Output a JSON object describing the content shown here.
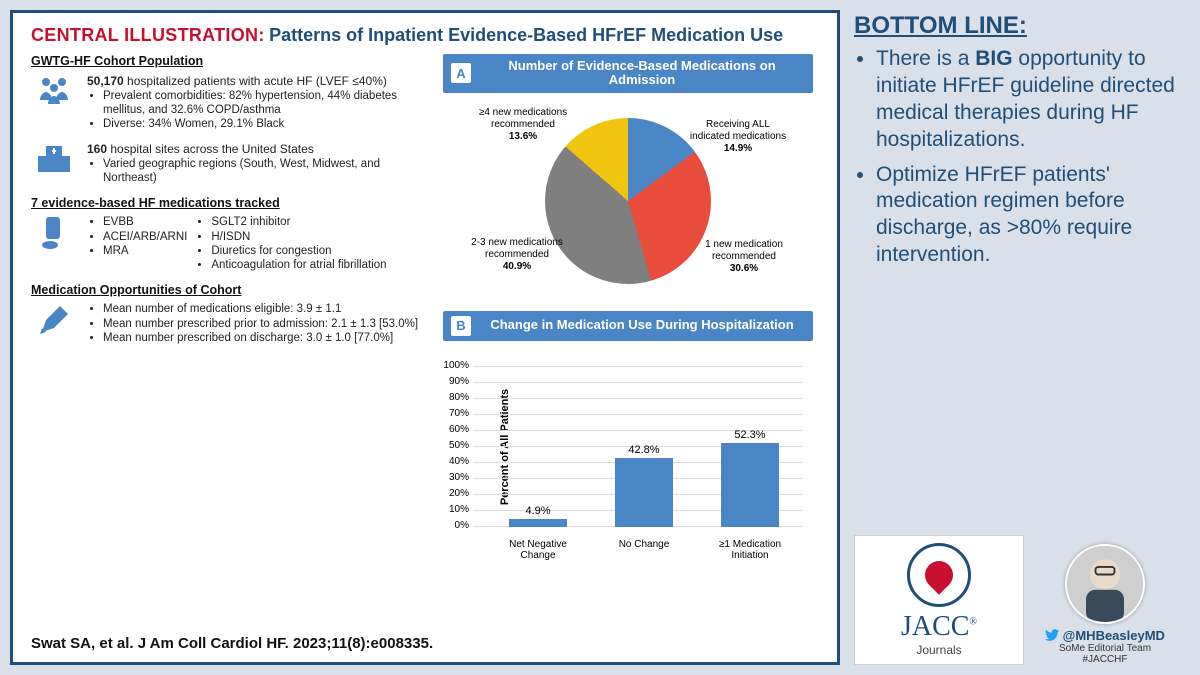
{
  "header": {
    "red_label": "CENTRAL ILLUSTRATION:",
    "title": "Patterns of Inpatient Evidence-Based HFrEF Medication Use"
  },
  "population": {
    "title": "GWTG-HF Cohort Population",
    "lead_count": "50,170",
    "lead_text": "hospitalized patients with acute HF (LVEF ≤40%)",
    "bullets": [
      "Prevalent comorbidities: 82% hypertension, 44% diabetes mellitus, and 32.6% COPD/asthma",
      "Diverse: 34% Women, 29.1% Black"
    ],
    "sites_count": "160",
    "sites_text": "hospital sites across the United States",
    "sites_bullets": [
      "Varied geographic regions (South, West, Midwest, and Northeast)"
    ]
  },
  "medications": {
    "title": "7 evidence-based HF medications tracked",
    "col1": [
      "EVBB",
      "ACEI/ARB/ARNI",
      "MRA"
    ],
    "col2": [
      "SGLT2 inhibitor",
      "H/ISDN",
      "Diuretics for congestion",
      "Anticoagulation for atrial fibrillation"
    ]
  },
  "opportunities": {
    "title": "Medication Opportunities of Cohort",
    "bullets": [
      "Mean number of medications eligible: 3.9 ± 1.1",
      "Mean number prescribed prior to admission: 2.1 ± 1.3 [53.0%]",
      "Mean number prescribed on discharge: 3.0 ± 1.0 [77.0%]"
    ]
  },
  "citation": "Swat SA, et al. J Am Coll Cardiol HF. 2023;11(8):e008335.",
  "panelA": {
    "letter": "A",
    "title": "Number of Evidence-Based Medications on Admission",
    "pie": {
      "slices": [
        {
          "label": "Receiving ALL indicated medications",
          "value": 14.9,
          "display": "14.9%",
          "color": "#4a86c5"
        },
        {
          "label": "1 new medication recommended",
          "value": 30.6,
          "display": "30.6%",
          "color": "#e74c3c"
        },
        {
          "label": "2-3 new medications recommended",
          "value": 40.9,
          "display": "40.9%",
          "color": "#7f7f7f"
        },
        {
          "label": "≥4 new medications recommended",
          "value": 13.6,
          "display": "13.6%",
          "color": "#f1c40f"
        }
      ],
      "border_color": "#ffffff",
      "border_width": 2,
      "label_fontsize": 10
    }
  },
  "panelB": {
    "letter": "B",
    "title": "Change in Medication Use During Hospitalization",
    "bar": {
      "ylabel": "Percent of All Patients",
      "ylim": [
        0,
        100
      ],
      "ytick_step": 10,
      "categories": [
        "Net Negative Change",
        "No Change",
        "≥1 Medication Initiation"
      ],
      "values": [
        4.9,
        42.8,
        52.3
      ],
      "displays": [
        "4.9%",
        "42.8%",
        "52.3%"
      ],
      "bar_color": "#4a86c5",
      "grid_color": "#dddddd",
      "label_fontsize": 10
    }
  },
  "bottomline": {
    "title": "BOTTOM LINE:",
    "items": [
      {
        "pre": "There is a ",
        "bold": "BIG",
        "post": " opportunity to initiate HFrEF guideline directed medical therapies during HF hospitalizations."
      },
      {
        "pre": "",
        "bold": "",
        "post": "Optimize HFrEF patients' medication regimen before discharge, as >80% require intervention."
      }
    ]
  },
  "branding": {
    "jacc": "JACC",
    "jacc_sub": "Journals",
    "twitter_handle": "@MHBeasleyMD",
    "twitter_sub1": "SoMe Editorial Team",
    "twitter_sub2": "#JACCHF"
  },
  "colors": {
    "frame": "#1f4e79",
    "accent_red": "#c8102e",
    "accent_blue": "#4a86c5",
    "background": "#d9e0ea"
  }
}
